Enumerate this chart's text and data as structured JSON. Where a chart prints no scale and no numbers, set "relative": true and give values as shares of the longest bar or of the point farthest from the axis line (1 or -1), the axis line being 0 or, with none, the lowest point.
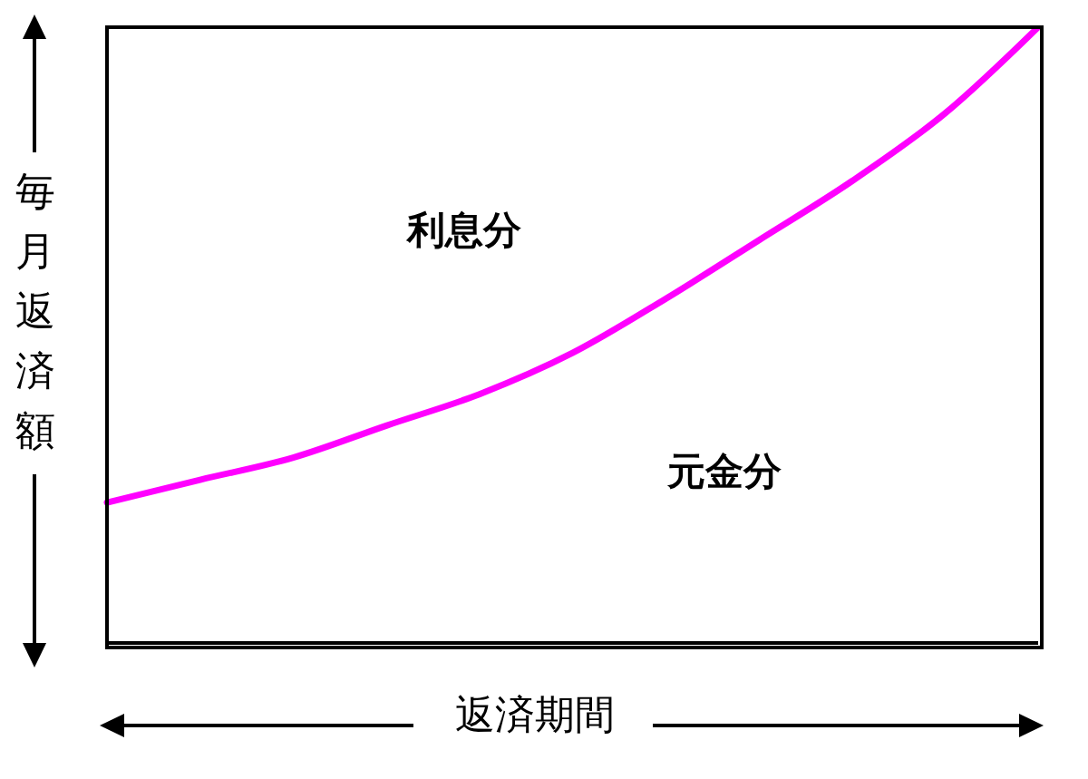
{
  "chart_data": {
    "type": "line",
    "relative": true,
    "xlabel": "返済期間",
    "ylabel": "毎月返済額",
    "categories": [
      null,
      null,
      null,
      null,
      null,
      null,
      null,
      null,
      null,
      null,
      null
    ],
    "series": [
      {
        "color": "#ff00ff",
        "values": [
          0.228,
          0.265,
          0.301,
          0.353,
          0.404,
          0.471,
          0.559,
          0.654,
          0.75,
          0.86,
          1.0
        ]
      }
    ],
    "annotations": [
      "利息分",
      "元金分"
    ],
    "marker": "none",
    "line_style": "solid",
    "grid": false,
    "legend": false
  }
}
